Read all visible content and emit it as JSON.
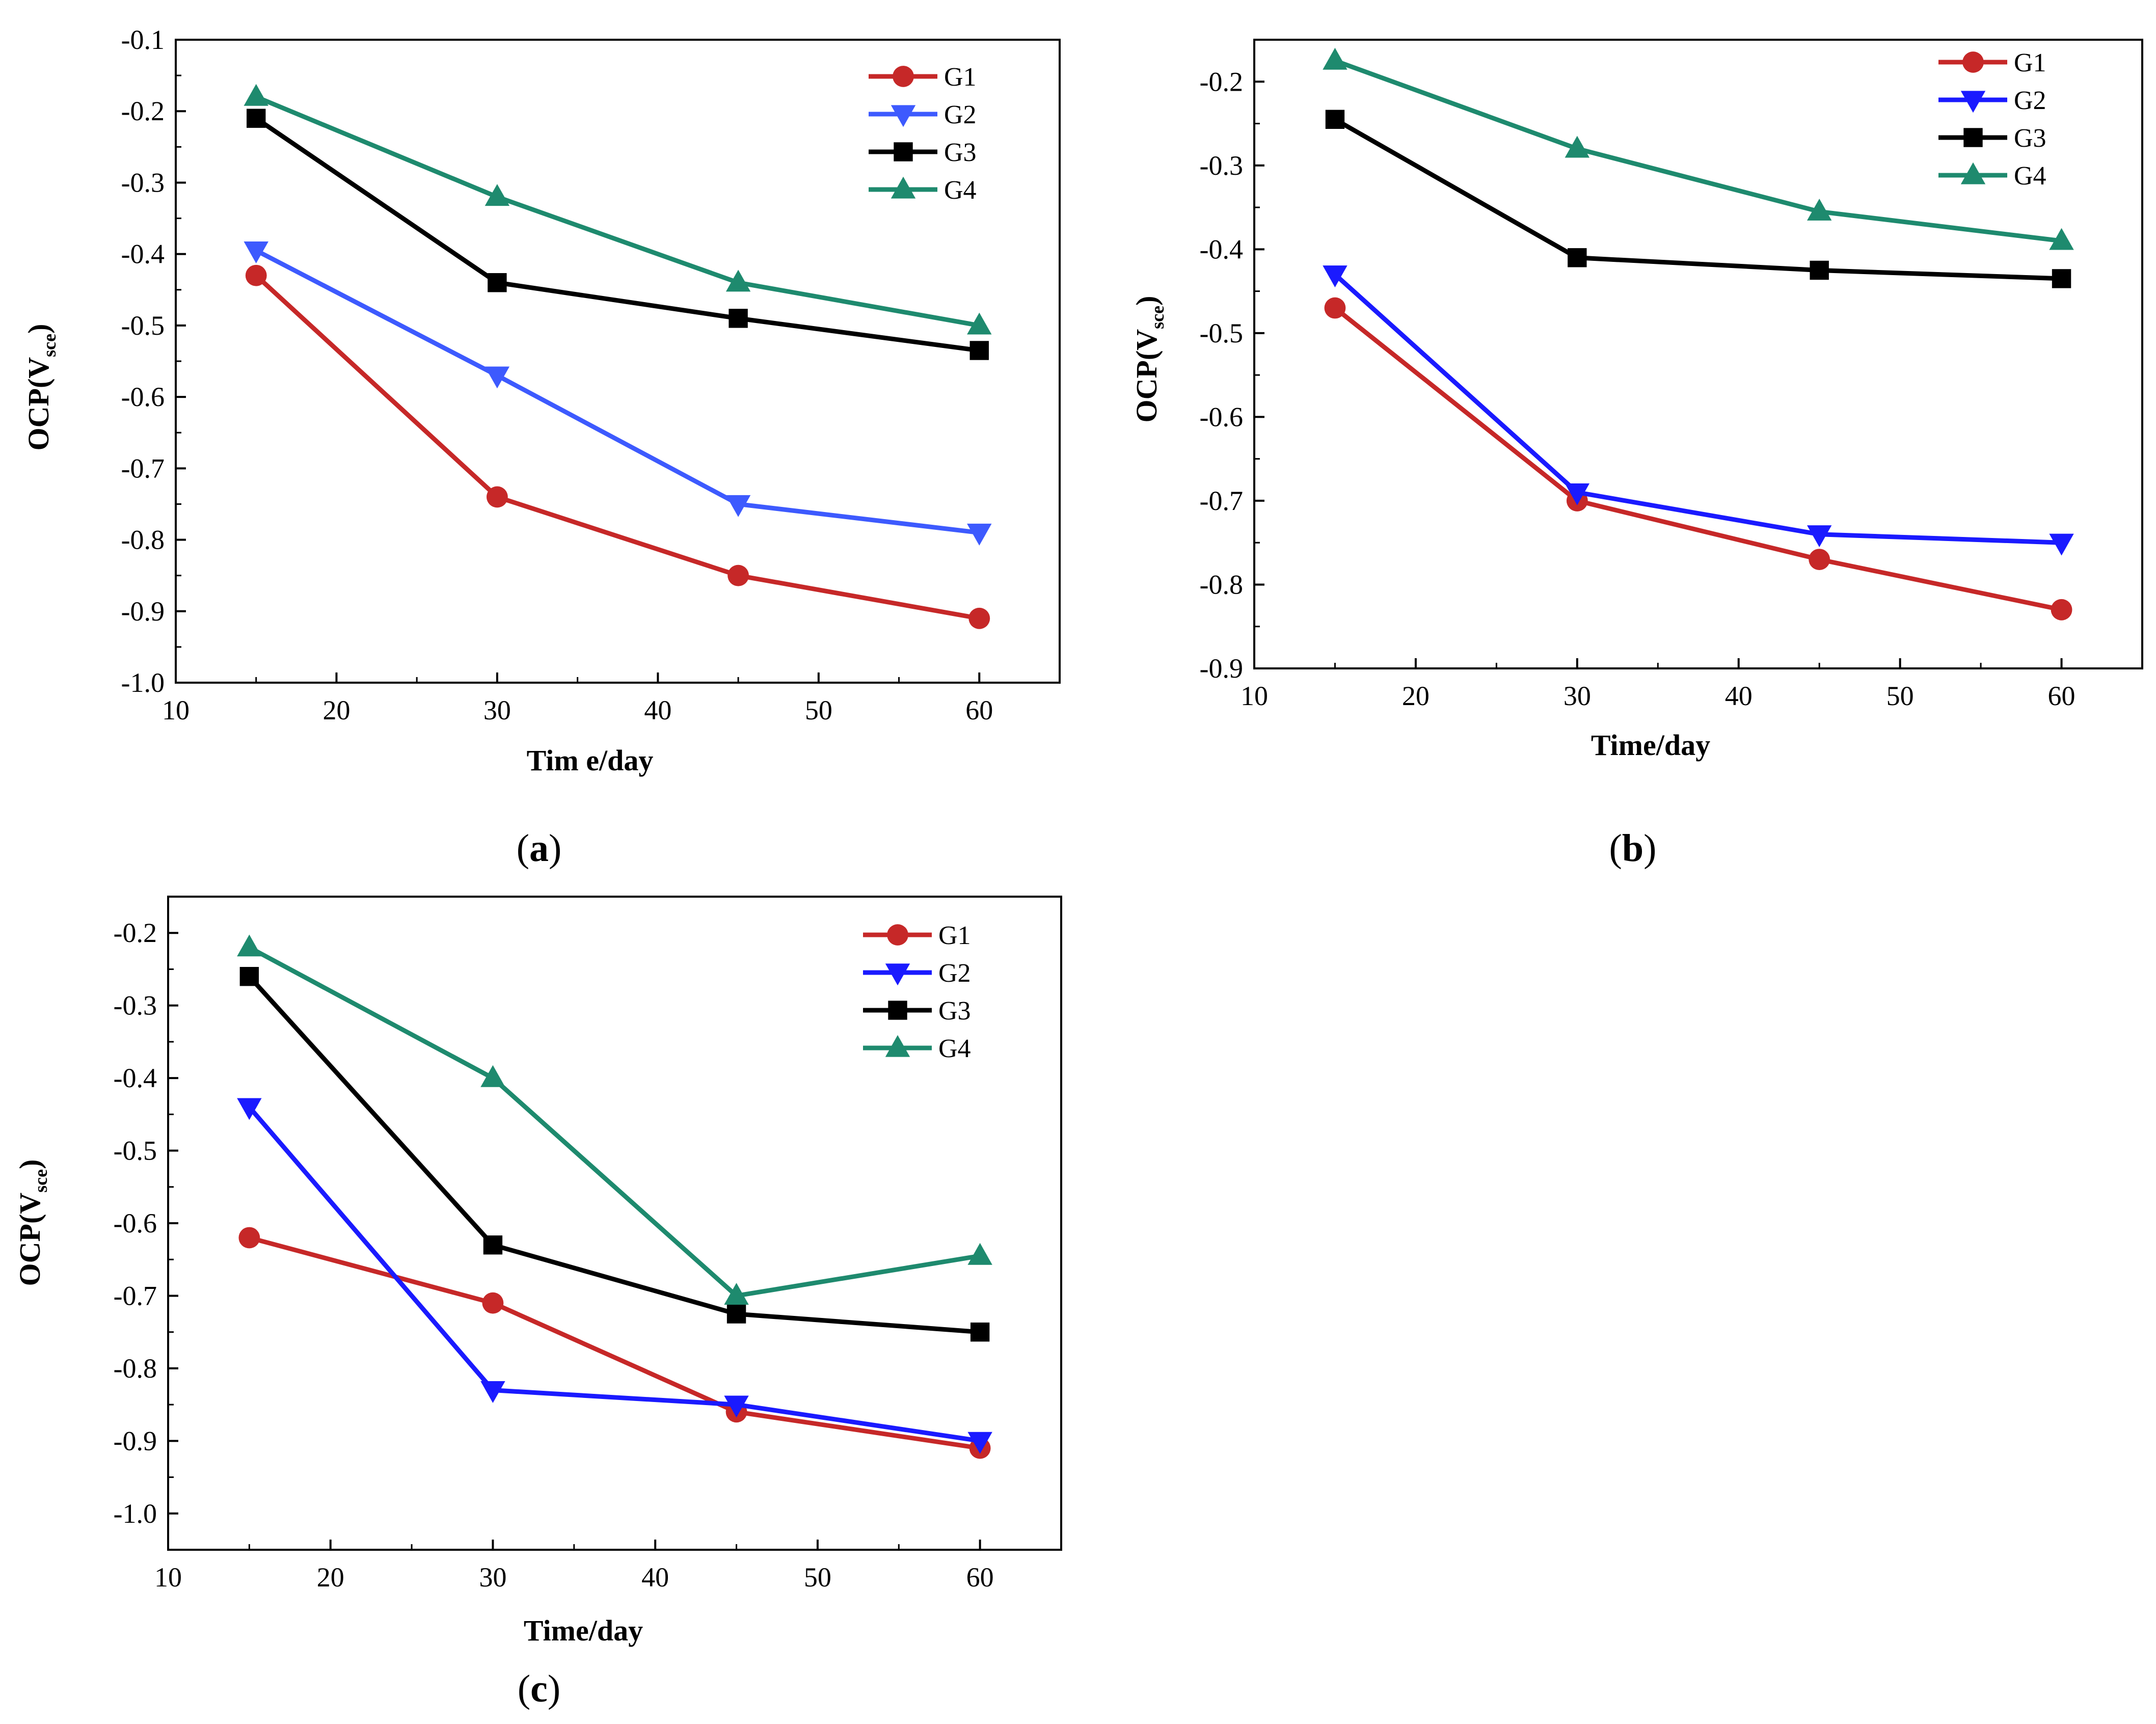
{
  "chart_data": [
    {
      "id": "a",
      "type": "line",
      "caption": "a",
      "xlabel": "Tim e/day",
      "ylabel": "OCP(V",
      "ylabel_sub": "sce",
      "ylabel_close": ")",
      "xlim": [
        10,
        65
      ],
      "ylim": [
        -1.0,
        -0.1
      ],
      "xticks": [
        10,
        20,
        30,
        40,
        50,
        60
      ],
      "yticks": [
        -0.1,
        -0.2,
        -0.3,
        -0.4,
        -0.5,
        -0.6,
        -0.7,
        -0.8,
        -0.9,
        -1.0
      ],
      "ytick_labels": [
        "-0.1",
        "-0.2",
        "-0.3",
        "-0.4",
        "-0.5",
        "-0.6",
        "-0.7",
        "-0.8",
        "-0.9",
        "-1.0"
      ],
      "x": [
        15,
        30,
        45,
        60
      ],
      "series": [
        {
          "name": "G1",
          "marker": "circle",
          "color": "#c62828",
          "values": [
            -0.43,
            -0.74,
            -0.85,
            -0.91
          ]
        },
        {
          "name": "G2",
          "marker": "triangle-down",
          "color": "#3d5afe",
          "values": [
            -0.395,
            -0.57,
            -0.75,
            -0.79
          ]
        },
        {
          "name": "G3",
          "marker": "square",
          "color": "#000000",
          "values": [
            -0.21,
            -0.44,
            -0.49,
            -0.535
          ]
        },
        {
          "name": "G4",
          "marker": "triangle-up",
          "color": "#1e8a6e",
          "values": [
            -0.18,
            -0.32,
            -0.44,
            -0.5
          ]
        }
      ]
    },
    {
      "id": "b",
      "type": "line",
      "caption": "b",
      "xlabel": "Time/day",
      "ylabel": "OCP(V",
      "ylabel_sub": "sce",
      "ylabel_close": ")",
      "xlim": [
        10,
        65
      ],
      "ylim": [
        -0.9,
        -0.15
      ],
      "xticks": [
        10,
        20,
        30,
        40,
        50,
        60
      ],
      "yticks": [
        -0.2,
        -0.3,
        -0.4,
        -0.5,
        -0.6,
        -0.7,
        -0.8,
        -0.9
      ],
      "ytick_labels": [
        "-0.2",
        "-0.3",
        "-0.4",
        "-0.5",
        "-0.6",
        "-0.7",
        "-0.8",
        "-0.9"
      ],
      "x": [
        15,
        30,
        45,
        60
      ],
      "series": [
        {
          "name": "G1",
          "marker": "circle",
          "color": "#c62828",
          "values": [
            -0.47,
            -0.7,
            -0.77,
            -0.83
          ]
        },
        {
          "name": "G2",
          "marker": "triangle-down",
          "color": "#1a1aff",
          "values": [
            -0.43,
            -0.69,
            -0.74,
            -0.75
          ]
        },
        {
          "name": "G3",
          "marker": "square",
          "color": "#000000",
          "values": [
            -0.245,
            -0.41,
            -0.425,
            -0.435
          ]
        },
        {
          "name": "G4",
          "marker": "triangle-up",
          "color": "#1e8a6e",
          "values": [
            -0.175,
            -0.28,
            -0.355,
            -0.39
          ]
        }
      ]
    },
    {
      "id": "c",
      "type": "line",
      "caption": "c",
      "xlabel": "Time/day",
      "ylabel": "OCP(V",
      "ylabel_sub": "sce",
      "ylabel_close": ")",
      "xlim": [
        10,
        65
      ],
      "ylim": [
        -1.05,
        -0.15
      ],
      "xticks": [
        10,
        20,
        30,
        40,
        50,
        60
      ],
      "yticks": [
        -0.2,
        -0.3,
        -0.4,
        -0.5,
        -0.6,
        -0.7,
        -0.8,
        -0.9,
        -1.0
      ],
      "ytick_labels": [
        "-0.2",
        "-0.3",
        "-0.4",
        "-0.5",
        "-0.6",
        "-0.7",
        "-0.8",
        "-0.9",
        "-1.0"
      ],
      "x": [
        15,
        30,
        45,
        60
      ],
      "series": [
        {
          "name": "G1",
          "marker": "circle",
          "color": "#c62828",
          "values": [
            -0.62,
            -0.71,
            -0.86,
            -0.91
          ]
        },
        {
          "name": "G2",
          "marker": "triangle-down",
          "color": "#1a1aff",
          "values": [
            -0.44,
            -0.83,
            -0.85,
            -0.9
          ]
        },
        {
          "name": "G3",
          "marker": "square",
          "color": "#000000",
          "values": [
            -0.26,
            -0.63,
            -0.725,
            -0.75
          ]
        },
        {
          "name": "G4",
          "marker": "triangle-up",
          "color": "#1e8a6e",
          "values": [
            -0.22,
            -0.4,
            -0.7,
            -0.645
          ]
        }
      ]
    }
  ]
}
